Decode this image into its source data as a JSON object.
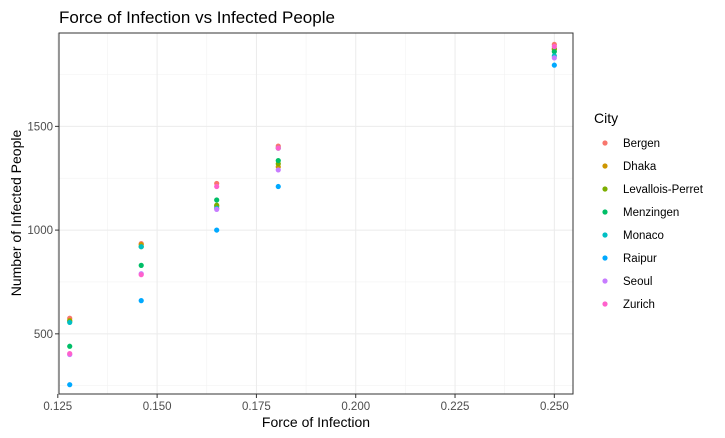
{
  "chart_data": {
    "type": "scatter",
    "title": "Force of Infection vs Infected People",
    "xlabel": "Force of Infection",
    "ylabel": "Number of Infected People",
    "xlim": [
      0.1253,
      0.2547
    ],
    "ylim": [
      210,
      1950
    ],
    "x_ticks": [
      0.125,
      0.15,
      0.175,
      0.2,
      0.225,
      0.25
    ],
    "x_tick_labels": [
      "0.125",
      "0.150",
      "0.175",
      "0.200",
      "0.225",
      "0.250"
    ],
    "y_ticks": [
      500,
      1000,
      1500
    ],
    "y_tick_labels": [
      "500",
      "1000",
      "1500"
    ],
    "grid": true,
    "legend": {
      "title": "City",
      "position": "right"
    },
    "series": [
      {
        "name": "Bergen",
        "color": "#F8766D",
        "points": [
          [
            0.128,
            575
          ],
          [
            0.146,
            935
          ],
          [
            0.165,
            1225
          ],
          [
            0.1805,
            1405
          ],
          [
            0.25,
            1895
          ]
        ]
      },
      {
        "name": "Dhaka",
        "color": "#CD9600",
        "points": [
          [
            0.128,
            565
          ],
          [
            0.146,
            930
          ],
          [
            0.165,
            1115
          ],
          [
            0.1805,
            1305
          ],
          [
            0.25,
            1870
          ]
        ]
      },
      {
        "name": "Levallois-Perret",
        "color": "#7CAE00",
        "points": [
          [
            0.128,
            560
          ],
          [
            0.146,
            920
          ],
          [
            0.165,
            1120
          ],
          [
            0.1805,
            1320
          ],
          [
            0.25,
            1875
          ]
        ]
      },
      {
        "name": "Menzingen",
        "color": "#00BE67",
        "points": [
          [
            0.128,
            440
          ],
          [
            0.146,
            830
          ],
          [
            0.165,
            1145
          ],
          [
            0.1805,
            1335
          ],
          [
            0.25,
            1860
          ]
        ]
      },
      {
        "name": "Monaco",
        "color": "#00BFC4",
        "points": [
          [
            0.128,
            555
          ],
          [
            0.146,
            920
          ],
          [
            0.165,
            1105
          ],
          [
            0.1805,
            1395
          ],
          [
            0.25,
            1840
          ]
        ]
      },
      {
        "name": "Raipur",
        "color": "#00A9FF",
        "points": [
          [
            0.128,
            255
          ],
          [
            0.146,
            660
          ],
          [
            0.165,
            1000
          ],
          [
            0.1805,
            1210
          ],
          [
            0.25,
            1795
          ]
        ]
      },
      {
        "name": "Seoul",
        "color": "#C77CFF",
        "points": [
          [
            0.128,
            400
          ],
          [
            0.146,
            790
          ],
          [
            0.165,
            1100
          ],
          [
            0.1805,
            1290
          ],
          [
            0.25,
            1830
          ]
        ]
      },
      {
        "name": "Zurich",
        "color": "#FF61CC",
        "points": [
          [
            0.128,
            405
          ],
          [
            0.146,
            785
          ],
          [
            0.165,
            1210
          ],
          [
            0.1805,
            1395
          ],
          [
            0.25,
            1885
          ]
        ]
      }
    ]
  }
}
